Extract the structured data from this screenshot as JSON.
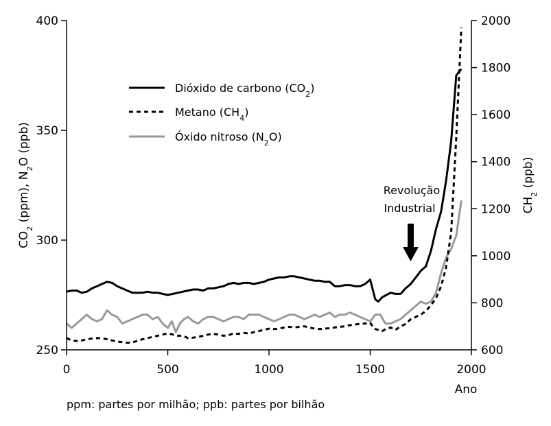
{
  "chart_data": {
    "type": "line",
    "x_axis": {
      "label": "Ano",
      "range": [
        0,
        2000
      ],
      "ticks": [
        0,
        500,
        1000,
        1500,
        2000
      ]
    },
    "y_left": {
      "label_parts": [
        "CO",
        "2",
        " (ppm), N",
        "2",
        "O (ppb)"
      ],
      "range": [
        250,
        400
      ],
      "ticks": [
        250,
        300,
        350,
        400
      ]
    },
    "y_right": {
      "label_parts": [
        "CH",
        "2",
        " (ppb)"
      ],
      "range": [
        600,
        2000
      ],
      "ticks": [
        600,
        800,
        1000,
        1200,
        1400,
        1600,
        1800,
        2000
      ]
    },
    "legend": [
      {
        "id": "co2",
        "parts": [
          "Dióxido de carbono (CO",
          "2",
          ")"
        ],
        "style": "solid",
        "color": "#000000"
      },
      {
        "id": "ch4",
        "parts": [
          "Metano (CH",
          "4",
          ")"
        ],
        "style": "dashed",
        "color": "#000000"
      },
      {
        "id": "n2o",
        "parts": [
          "Óxido nitroso (N",
          "2",
          "O)"
        ],
        "style": "solid",
        "color": "#999999"
      }
    ],
    "series": [
      {
        "id": "co2",
        "axis": "left",
        "color": "#000000",
        "style": "solid",
        "x": [
          0,
          25,
          50,
          75,
          100,
          125,
          150,
          175,
          200,
          225,
          250,
          275,
          300,
          325,
          350,
          375,
          400,
          425,
          450,
          475,
          500,
          525,
          550,
          575,
          600,
          625,
          650,
          675,
          700,
          725,
          750,
          775,
          800,
          825,
          850,
          875,
          900,
          925,
          950,
          975,
          1000,
          1025,
          1050,
          1075,
          1100,
          1125,
          1150,
          1175,
          1200,
          1225,
          1250,
          1275,
          1300,
          1325,
          1350,
          1375,
          1400,
          1425,
          1450,
          1475,
          1500,
          1525,
          1540,
          1560,
          1580,
          1600,
          1625,
          1650,
          1675,
          1700,
          1725,
          1750,
          1775,
          1800,
          1825,
          1850,
          1875,
          1900,
          1925,
          1950
        ],
        "y": [
          276.5,
          277,
          277,
          276,
          276.5,
          278,
          279,
          280,
          281,
          280.5,
          279,
          278,
          277,
          276,
          276,
          276,
          276.5,
          276,
          276,
          275.5,
          275,
          275.5,
          276,
          276.5,
          277,
          277.5,
          277.5,
          277,
          278,
          278,
          278.5,
          279,
          280,
          280.5,
          280,
          280.5,
          280.5,
          280,
          280.5,
          281,
          282,
          282.5,
          283,
          283,
          283.5,
          283.5,
          283,
          282.5,
          282,
          281.5,
          281.5,
          281,
          281,
          279,
          279,
          279.5,
          279.5,
          279,
          279,
          280,
          282,
          273,
          272,
          274,
          275,
          276,
          275.5,
          275.5,
          278,
          280,
          283,
          286,
          288,
          295,
          305,
          313,
          327,
          345,
          375,
          378
        ]
      },
      {
        "id": "ch4",
        "axis": "right",
        "color": "#000000",
        "style": "dashed",
        "x": [
          0,
          25,
          50,
          75,
          100,
          125,
          150,
          175,
          200,
          225,
          250,
          275,
          300,
          325,
          350,
          375,
          400,
          425,
          450,
          475,
          500,
          525,
          550,
          575,
          600,
          625,
          650,
          675,
          700,
          725,
          750,
          775,
          800,
          825,
          850,
          875,
          900,
          925,
          950,
          975,
          1000,
          1025,
          1050,
          1075,
          1100,
          1125,
          1150,
          1175,
          1200,
          1225,
          1250,
          1275,
          1300,
          1325,
          1350,
          1375,
          1400,
          1425,
          1450,
          1475,
          1500,
          1520,
          1540,
          1560,
          1580,
          1600,
          1625,
          1650,
          1675,
          1700,
          1725,
          1750,
          1775,
          1800,
          1825,
          1850,
          1875,
          1900,
          1925,
          1950
        ],
        "y": [
          650,
          640,
          638,
          640,
          645,
          648,
          650,
          650,
          645,
          640,
          635,
          633,
          630,
          632,
          638,
          645,
          650,
          655,
          660,
          665,
          670,
          665,
          660,
          660,
          650,
          652,
          655,
          660,
          665,
          668,
          665,
          660,
          662,
          670,
          668,
          672,
          670,
          675,
          680,
          685,
          690,
          688,
          690,
          695,
          698,
          695,
          698,
          700,
          695,
          690,
          688,
          690,
          692,
          695,
          698,
          700,
          705,
          708,
          710,
          712,
          715,
          690,
          685,
          680,
          690,
          695,
          685,
          700,
          710,
          730,
          740,
          750,
          765,
          790,
          820,
          870,
          950,
          1100,
          1500,
          1970
        ]
      },
      {
        "id": "n2o",
        "axis": "left",
        "color": "#999999",
        "style": "solid",
        "x": [
          0,
          25,
          50,
          75,
          100,
          125,
          150,
          175,
          200,
          225,
          250,
          275,
          300,
          325,
          350,
          375,
          400,
          425,
          450,
          475,
          500,
          520,
          540,
          560,
          580,
          600,
          625,
          650,
          675,
          700,
          725,
          750,
          775,
          800,
          825,
          850,
          875,
          900,
          925,
          950,
          975,
          1000,
          1025,
          1050,
          1075,
          1100,
          1125,
          1150,
          1175,
          1200,
          1225,
          1250,
          1275,
          1300,
          1325,
          1350,
          1375,
          1400,
          1425,
          1450,
          1475,
          1500,
          1525,
          1550,
          1575,
          1600,
          1625,
          1650,
          1675,
          1700,
          1725,
          1750,
          1775,
          1800,
          1825,
          1850,
          1875,
          1900,
          1925,
          1950
        ],
        "y": [
          262,
          260,
          262,
          264,
          266,
          264,
          263,
          264,
          268,
          266,
          265,
          262,
          263,
          264,
          265,
          266,
          266,
          264,
          265,
          262,
          260,
          263,
          258,
          262,
          264,
          265,
          263,
          262,
          264,
          265,
          265,
          264,
          263,
          264,
          265,
          265,
          264,
          266,
          266,
          266,
          265,
          264,
          263,
          264,
          265,
          266,
          266,
          265,
          264,
          265,
          266,
          265,
          266,
          267,
          265,
          266,
          266,
          267,
          266,
          265,
          264,
          263,
          266,
          266,
          262,
          262,
          263,
          264,
          266,
          268,
          270,
          272,
          271,
          272,
          276,
          285,
          292,
          296,
          302,
          318
        ]
      }
    ],
    "annotation": {
      "lines": [
        "Revolução",
        "Industrial"
      ],
      "x": 1720
    }
  },
  "footnote": "ppm: partes por milhão; ppb: partes por bilhão"
}
